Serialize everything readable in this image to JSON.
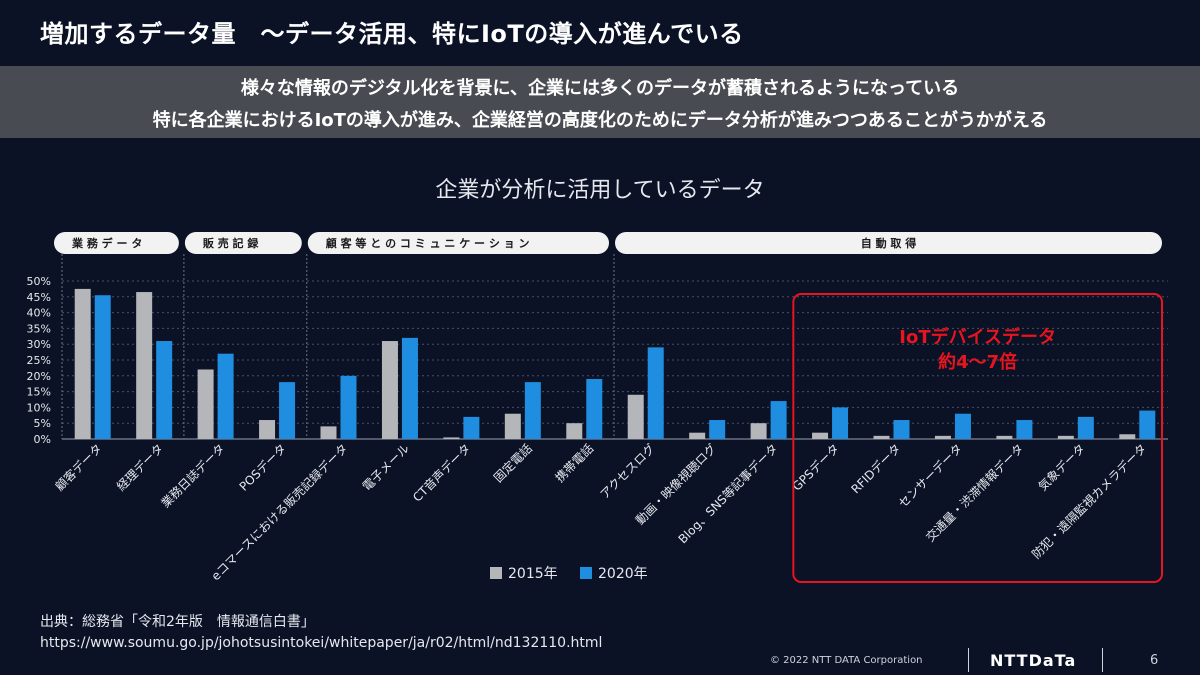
{
  "slide": {
    "title": "増加するデータ量　～データ活用、特にIoTの導入が進んでいる",
    "banner_lines": [
      "様々な情報のデジタル化を背景に、企業には多くのデータが蓄積されるようになっている",
      "特に各企業におけるIoTの導入が進み、企業経営の高度化のためにデータ分析が進みつつあることがうかがえる"
    ],
    "source_label": "出典：総務省「令和2年版　情報通信白書」",
    "source_url": "https://www.soumu.go.jp/johotsusintokei/whitepaper/ja/r02/html/nd132110.html",
    "copyright": "© 2022 NTT DATA Corporation",
    "logo_text": "NTTDaTa",
    "page_number": "6"
  },
  "colors": {
    "background": "#0b1226",
    "banner": "#484b52",
    "series_2015": "#b4b6ba",
    "series_2020": "#1f8ee0",
    "highlight": "#e8141e"
  },
  "chart_data": {
    "type": "bar",
    "title": "企業が分析に活用しているデータ",
    "ylim": [
      0,
      50
    ],
    "yticks": [
      0,
      5,
      10,
      15,
      20,
      25,
      30,
      35,
      40,
      45,
      50
    ],
    "ytick_labels": [
      "0%",
      "5%",
      "10%",
      "15%",
      "20%",
      "25%",
      "30%",
      "35%",
      "40%",
      "45%",
      "50%"
    ],
    "grid": true,
    "legend_position": "bottom",
    "categories": [
      "顧客データ",
      "経理データ",
      "業務日誌データ",
      "POSデータ",
      "eコマースにおける販売記録データ",
      "電子メール",
      "CT音声データ",
      "固定電話",
      "携帯電話",
      "アクセスログ",
      "動画・映像視聴ログ",
      "Blog、SNS等記事データ",
      "GPSデータ",
      "RFIDデータ",
      "センサーデータ",
      "交通量・渋滞情報データ",
      "気象データ",
      "防犯・遠隔監視カメラデータ"
    ],
    "series": [
      {
        "name": "2015年",
        "values": [
          47.5,
          46.5,
          22,
          6,
          4,
          31,
          0.5,
          8,
          5,
          14,
          2,
          5,
          2,
          1,
          1,
          1,
          1,
          1.5
        ]
      },
      {
        "name": "2020年",
        "values": [
          45.5,
          31,
          27,
          18,
          20,
          32,
          7,
          18,
          19,
          29,
          6,
          12,
          10,
          6,
          8,
          6,
          7,
          9
        ]
      }
    ],
    "groups": [
      {
        "label": "業務データ",
        "start": 0,
        "end": 1
      },
      {
        "label": "販売記録",
        "start": 2,
        "end": 3
      },
      {
        "label": "顧客等とのコミュニケーション",
        "start": 4,
        "end": 8
      },
      {
        "label": "自動取得",
        "start": 9,
        "end": 17
      }
    ],
    "annotation": {
      "lines": [
        "IoTデバイスデータ",
        "約4～7倍"
      ],
      "start": 12,
      "end": 17
    }
  }
}
